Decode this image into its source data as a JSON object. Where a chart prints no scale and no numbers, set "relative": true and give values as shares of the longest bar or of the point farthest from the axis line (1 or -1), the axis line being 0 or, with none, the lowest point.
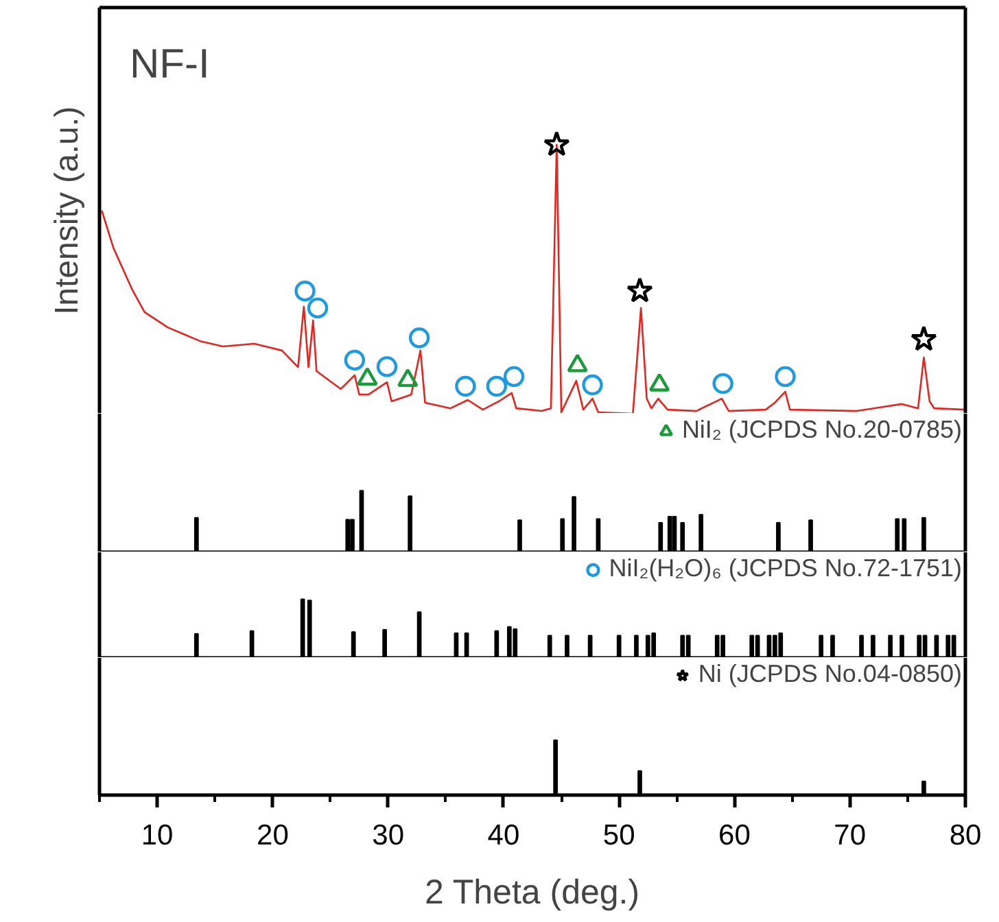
{
  "chart_data": [
    {
      "type": "line",
      "title": "NF-I",
      "ylabel": "Intensity (a.u.)",
      "relative": true,
      "xlim": [
        5,
        80
      ],
      "tick_labels": false,
      "series": [
        {
          "type": "line",
          "color": "#e3261f",
          "x": [
            5.2,
            6.2,
            7.8,
            8.9,
            10.9,
            13.7,
            15.7,
            18.4,
            20.8,
            22.2,
            22.7,
            23.1,
            23.5,
            23.8,
            25.9,
            27.1,
            27.5,
            28.3,
            29.9,
            30.3,
            32.0,
            32.8,
            33.2,
            35.4,
            36.9,
            38.2,
            39.6,
            40.7,
            41.1,
            43.3,
            44.1,
            44.6,
            45.0,
            46.3,
            46.9,
            47.7,
            48.2,
            51.2,
            51.9,
            52.4,
            52.8,
            53.4,
            54.2,
            56.7,
            58.9,
            59.5,
            62.7,
            63.5,
            64.4,
            64.8,
            70.6,
            74.5,
            75.9,
            76.4,
            76.9,
            77.3,
            79.9
          ],
          "values": [
            0.755,
            0.617,
            0.464,
            0.378,
            0.321,
            0.27,
            0.25,
            0.26,
            0.235,
            0.173,
            0.398,
            0.173,
            0.347,
            0.158,
            0.092,
            0.143,
            0.071,
            0.071,
            0.117,
            0.046,
            0.071,
            0.235,
            0.041,
            0.02,
            0.051,
            0.015,
            0.046,
            0.077,
            0.02,
            0.01,
            0.02,
            1,
            0.005,
            0.122,
            0.015,
            0.056,
            0.005,
            0,
            0.393,
            0.056,
            0.02,
            0.056,
            0.015,
            0.01,
            0.056,
            0.01,
            0.015,
            0.041,
            0.082,
            0.015,
            0.01,
            0.036,
            0.02,
            0.209,
            0.046,
            0.02,
            0.015
          ]
        },
        {
          "type": "scatter",
          "marker": "circle",
          "color": "#1e9be0",
          "x": [
            22.8,
            23.9,
            27.1,
            29.9,
            32.7,
            36.7,
            39.4,
            40.9,
            47.7,
            59.0,
            64.4
          ],
          "values": [
            0.456,
            0.393,
            0.199,
            0.175,
            0.282,
            0.102,
            0.102,
            0.138,
            0.107,
            0.112,
            0.138
          ]
        },
        {
          "type": "scatter",
          "marker": "triangle",
          "color": "#1a9a3a",
          "x": [
            28.2,
            31.7,
            46.4,
            53.5
          ],
          "values": [
            0.129,
            0.124,
            0.179,
            0.107
          ]
        },
        {
          "type": "scatter",
          "marker": "star",
          "color": "#000000",
          "x": [
            44.6,
            51.8,
            76.4
          ],
          "values": [
            1.0,
            0.456,
            0.276
          ]
        }
      ]
    },
    {
      "type": "bar",
      "relative": true,
      "xlim": [
        5,
        80
      ],
      "tick_labels": false,
      "legend": "top right",
      "series": [
        {
          "color": "#000000",
          "x": [
            13.4,
            26.5,
            26.9,
            27.7,
            31.9,
            41.4,
            45.1,
            46.1,
            48.2,
            53.6,
            54.4,
            54.8,
            55.5,
            57.1,
            63.8,
            66.6,
            74.1,
            74.7,
            76.4
          ],
          "values": [
            0.56,
            0.53,
            0.53,
            1,
            0.91,
            0.52,
            0.54,
            0.9,
            0.54,
            0.48,
            0.58,
            0.58,
            0.48,
            0.61,
            0.48,
            0.52,
            0.54,
            0.54,
            0.56
          ]
        },
        {
          "type": "scatter",
          "marker": "triangle",
          "name": "NiI₂ (JCPDS No.20-0785)",
          "color": "#1a9a3a"
        }
      ]
    },
    {
      "type": "bar",
      "relative": true,
      "xlim": [
        5,
        80
      ],
      "tick_labels": false,
      "legend": "top right",
      "series": [
        {
          "color": "#000000",
          "x": [
            13.4,
            18.2,
            22.6,
            23.2,
            27.0,
            29.7,
            32.7,
            35.9,
            36.8,
            39.4,
            40.5,
            41.0,
            44.0,
            45.5,
            47.5,
            50.0,
            51.5,
            52.5,
            53.0,
            55.5,
            56.0,
            58.5,
            59.0,
            61.5,
            62.0,
            63.0,
            63.5,
            64.0,
            67.5,
            68.5,
            71.0,
            72.0,
            73.5,
            74.5,
            76.0,
            76.5,
            77.5,
            78.5,
            79.0
          ],
          "values": [
            0.41,
            0.46,
            1,
            0.98,
            0.44,
            0.48,
            0.78,
            0.42,
            0.42,
            0.46,
            0.53,
            0.49,
            0.38,
            0.38,
            0.38,
            0.38,
            0.38,
            0.38,
            0.42,
            0.38,
            0.38,
            0.38,
            0.38,
            0.38,
            0.38,
            0.38,
            0.38,
            0.42,
            0.38,
            0.38,
            0.38,
            0.38,
            0.38,
            0.38,
            0.38,
            0.38,
            0.38,
            0.38,
            0.38
          ]
        },
        {
          "type": "scatter",
          "marker": "circle",
          "name": "NiI₂(H₂O)₆ (JCPDS No.72-1751)",
          "color": "#1e9be0"
        }
      ]
    },
    {
      "type": "bar",
      "relative": true,
      "xlim": [
        5,
        80
      ],
      "tick_labels": "x",
      "legend": "top right",
      "xlabel": "2 Theta (deg.)",
      "xticks": [
        {
          "value": 5,
          "label": null
        },
        10,
        {
          "value": 15,
          "label": null
        },
        20,
        {
          "value": 25,
          "label": null
        },
        30,
        {
          "value": 35,
          "label": null
        },
        40,
        {
          "value": 45,
          "label": null
        },
        50,
        {
          "value": 55,
          "label": null
        },
        60,
        {
          "value": 65,
          "label": null
        },
        70,
        {
          "value": 75,
          "label": null
        },
        80
      ],
      "series": [
        {
          "color": "#000000",
          "x": [
            44.5,
            51.8,
            76.4
          ],
          "values": [
            1,
            0.44,
            0.25
          ]
        },
        {
          "type": "scatter",
          "marker": "star",
          "name": "Ni (JCPDS No.04-0850)",
          "color": "#000000"
        }
      ]
    }
  ]
}
